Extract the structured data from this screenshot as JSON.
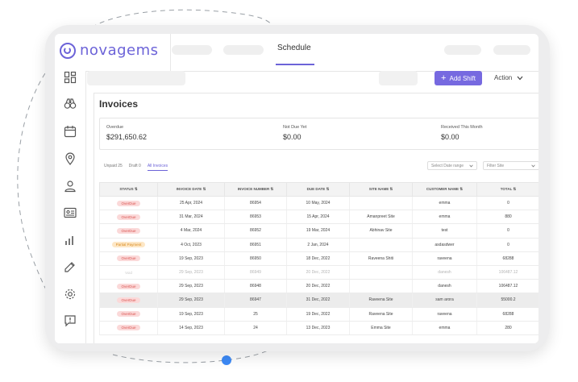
{
  "brand": {
    "name": "novagems"
  },
  "nav": {
    "active_label": "Schedule"
  },
  "toolbar": {
    "add_shift_label": "Add Shift",
    "action_label": "Action"
  },
  "sidebar": {
    "items": [
      {
        "icon": "dashboard-icon"
      },
      {
        "icon": "binoculars-icon"
      },
      {
        "icon": "calendar-icon"
      },
      {
        "icon": "location-pin-icon"
      },
      {
        "icon": "user-icon"
      },
      {
        "icon": "id-card-icon"
      },
      {
        "icon": "bar-chart-icon"
      },
      {
        "icon": "edit-icon"
      },
      {
        "icon": "settings-icon"
      },
      {
        "icon": "feedback-icon"
      }
    ]
  },
  "page": {
    "title": "Invoices"
  },
  "summary": {
    "overdue_label": "Overdue",
    "overdue_value": "$291,650.62",
    "not_due_label": "Not Due Yet",
    "not_due_value": "$0.00",
    "received_label": "Received This Month",
    "received_value": "$0.00"
  },
  "tabs": {
    "unpaid": "Unpaid 25",
    "draft": "Draft 0",
    "all": "All Invoices"
  },
  "filters": {
    "date_range_placeholder": "Select Date range",
    "site_placeholder": "Filter Site"
  },
  "table": {
    "headers": [
      "STATUS",
      "INVOICE DATE",
      "INVOICE NUMBER",
      "DUE DATE",
      "SITE NAME",
      "CUSTOMER NAME",
      "TOTAL"
    ],
    "rows": [
      {
        "status": "OverDue",
        "status_type": "overdue",
        "invoice_date": "25 Apr, 2024",
        "invoice_number": "86954",
        "due_date": "10 May, 2024",
        "site_name": "",
        "customer": "emma",
        "total": "0"
      },
      {
        "status": "OverDue",
        "status_type": "overdue",
        "invoice_date": "31 Mar, 2024",
        "invoice_number": "86953",
        "due_date": "15 Apr, 2024",
        "site_name": "Amanpreet Site",
        "customer": "emma",
        "total": "880"
      },
      {
        "status": "OverDue",
        "status_type": "overdue",
        "invoice_date": "4 Mar, 2024",
        "invoice_number": "86952",
        "due_date": "19 Mar, 2024",
        "site_name": "Abhinav Site",
        "customer": "test",
        "total": "0"
      },
      {
        "status": "Partial Payment",
        "status_type": "partial",
        "invoice_date": "4 Oct, 2023",
        "invoice_number": "86951",
        "due_date": "2 Jan, 2024",
        "site_name": "",
        "customer": "asdasdwer",
        "total": "0"
      },
      {
        "status": "OverDue",
        "status_type": "overdue",
        "invoice_date": "19 Sep, 2023",
        "invoice_number": "86950",
        "due_date": "18 Dec, 2022",
        "site_name": "Raveena Shiti",
        "customer": "raveena",
        "total": "68288"
      },
      {
        "status": "Void",
        "status_type": "void",
        "invoice_date": "29 Sep, 2023",
        "invoice_number": "86949",
        "due_date": "20 Dec, 2022",
        "site_name": "",
        "customer": "danesh",
        "total": "106487.12"
      },
      {
        "status": "OverDue",
        "status_type": "overdue",
        "invoice_date": "29 Sep, 2023",
        "invoice_number": "86948",
        "due_date": "20 Dec, 2022",
        "site_name": "",
        "customer": "danesh",
        "total": "106487.12"
      },
      {
        "status": "OverDue",
        "status_type": "overdue",
        "invoice_date": "29 Sep, 2023",
        "invoice_number": "86947",
        "due_date": "31 Dec, 2022",
        "site_name": "Raveena Site",
        "customer": "sam arora",
        "total": "55000.2"
      },
      {
        "status": "OverDue",
        "status_type": "overdue",
        "invoice_date": "19 Sep, 2023",
        "invoice_number": "25",
        "due_date": "19 Dec, 2022",
        "site_name": "Raveena Site",
        "customer": "raveena",
        "total": "68288"
      },
      {
        "status": "OverDue",
        "status_type": "overdue",
        "invoice_date": "14 Sep, 2023",
        "invoice_number": "24",
        "due_date": "13 Dec, 2023",
        "site_name": "Emma Site",
        "customer": "emma",
        "total": "280"
      }
    ]
  }
}
